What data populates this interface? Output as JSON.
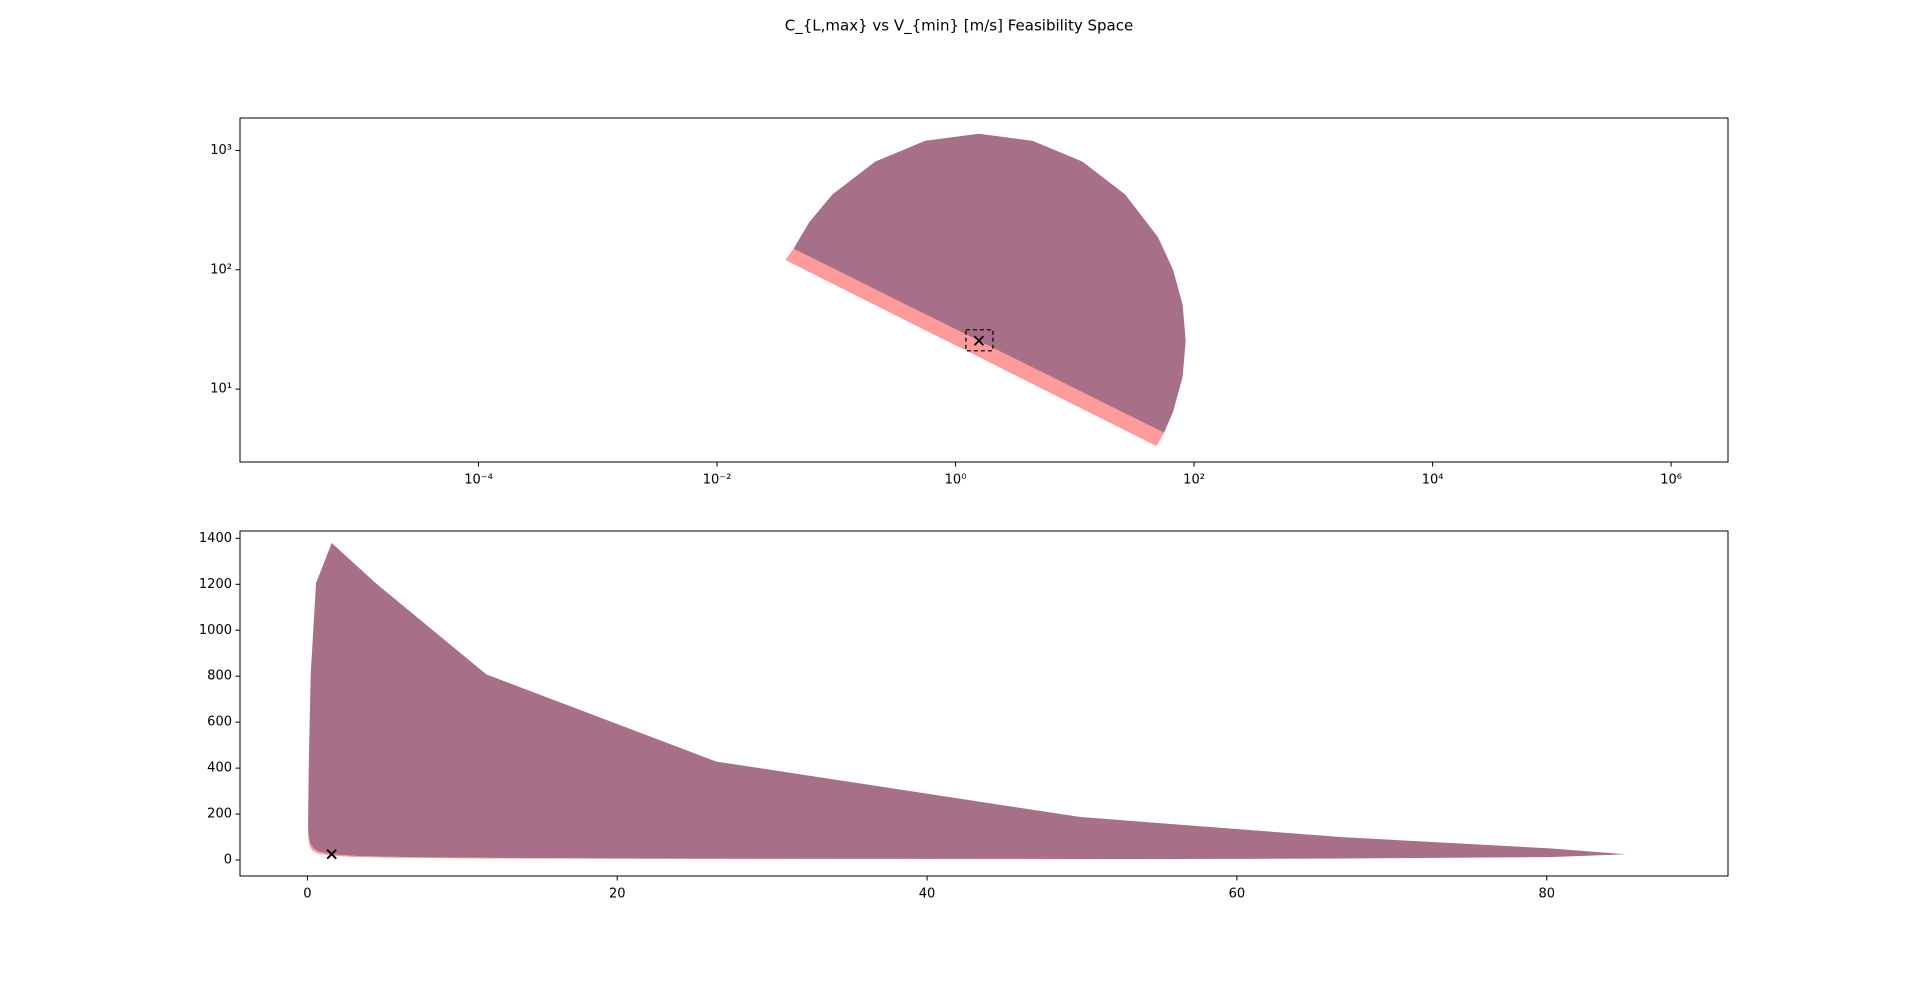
{
  "title": "C_{L,max} vs V_{min} [m/s] Feasibility Space",
  "chart_data": [
    {
      "type": "area",
      "xscale": "log",
      "yscale": "log",
      "xlim": [
        1e-06,
        3000000
      ],
      "ylim": [
        2.45,
        1870
      ],
      "xticks": [
        {
          "value": 0.0001,
          "label": "10⁻⁴"
        },
        {
          "value": 0.01,
          "label": "10⁻²"
        },
        {
          "value": 1,
          "label": "10⁰"
        },
        {
          "value": 100,
          "label": "10²"
        },
        {
          "value": 10000,
          "label": "10⁴"
        },
        {
          "value": 1000000,
          "label": "10⁶"
        }
      ],
      "yticks": [
        {
          "value": 10,
          "label": "10¹"
        },
        {
          "value": 100,
          "label": "10²"
        },
        {
          "value": 1000,
          "label": "10³"
        }
      ],
      "highlight_box": true,
      "series": [
        {
          "color": "#ff9a9a",
          "x": [
            0.0438,
            0.0895,
            0.1832,
            0.374,
            0.766,
            1.567,
            3.21,
            6.56,
            13.4,
            27.4,
            56.1,
            48.3,
            23.6,
            11.5,
            5.64,
            2.75,
            1.345,
            0.656,
            0.3206,
            0.1567,
            0.0766,
            0.0374
          ],
          "values": [
            150,
            105.2,
            73.8,
            51.6,
            36.2,
            25.4,
            17.8,
            12.5,
            8.75,
            6.14,
            4.31,
            3.33,
            4.78,
            6.84,
            9.79,
            14.0,
            20.1,
            28.7,
            41.1,
            58.9,
            84.3,
            120.8
          ]
        },
        {
          "color": "#a86f89",
          "x": [
            56.1,
            66.8,
            80.2,
            85.1,
            80.2,
            66.8,
            49.9,
            26.4,
            11.55,
            4.41,
            1.57,
            0.557,
            0.2126,
            0.0929,
            0.0594,
            0.0438,
            0.0895,
            0.1832,
            0.374,
            0.766,
            1.567,
            3.21,
            6.56,
            13.4,
            27.4
          ],
          "values": [
            4.31,
            6.49,
            12.7,
            25.4,
            50.8,
            99.5,
            187.3,
            428.5,
            808,
            1205,
            1380,
            1205,
            808,
            428.5,
            251,
            150,
            105.2,
            73.8,
            51.6,
            36.2,
            25.4,
            17.8,
            12.5,
            8.75,
            6.14
          ]
        },
        {
          "color": "#000000",
          "marker": "x",
          "x": [
            1.57
          ],
          "values": [
            25.4
          ]
        }
      ]
    },
    {
      "type": "area",
      "xscale": "linear",
      "yscale": "linear",
      "xlim": [
        -4.35,
        91.7
      ],
      "ylim": [
        -69.5,
        1432
      ],
      "xticks": [
        0,
        20,
        40,
        60,
        80
      ],
      "yticks": [
        0,
        200,
        400,
        600,
        800,
        1000,
        1200,
        1400
      ],
      "highlight_box": false,
      "series": [
        {
          "color": "#ff9a9a",
          "x": [
            0.0438,
            0.0895,
            0.1832,
            0.374,
            0.766,
            1.567,
            3.21,
            6.56,
            13.4,
            27.4,
            56.1,
            48.3,
            23.6,
            11.5,
            5.64,
            2.75,
            1.345,
            0.656,
            0.3206,
            0.1567,
            0.0766,
            0.0374
          ],
          "values": [
            150,
            105.2,
            73.8,
            51.6,
            36.2,
            25.4,
            17.8,
            12.5,
            8.75,
            6.14,
            4.31,
            3.33,
            4.78,
            6.84,
            9.79,
            14.0,
            20.1,
            28.7,
            41.1,
            58.9,
            84.3,
            120.8
          ]
        },
        {
          "color": "#a86f89",
          "x": [
            56.1,
            66.8,
            80.2,
            85.1,
            80.2,
            66.8,
            49.9,
            26.4,
            11.55,
            4.41,
            1.57,
            0.557,
            0.2126,
            0.0929,
            0.0594,
            0.0438,
            0.0895,
            0.1832,
            0.374,
            0.766,
            1.567,
            3.21,
            6.56,
            13.4,
            27.4
          ],
          "values": [
            4.31,
            6.49,
            12.7,
            25.4,
            50.8,
            99.5,
            187.3,
            428.5,
            808,
            1205,
            1380,
            1205,
            808,
            428.5,
            251,
            150,
            105.2,
            73.8,
            51.6,
            36.2,
            25.4,
            17.8,
            12.5,
            8.75,
            6.14
          ]
        },
        {
          "color": "#000000",
          "marker": "x",
          "x": [
            1.57
          ],
          "values": [
            25.4
          ]
        }
      ]
    }
  ]
}
